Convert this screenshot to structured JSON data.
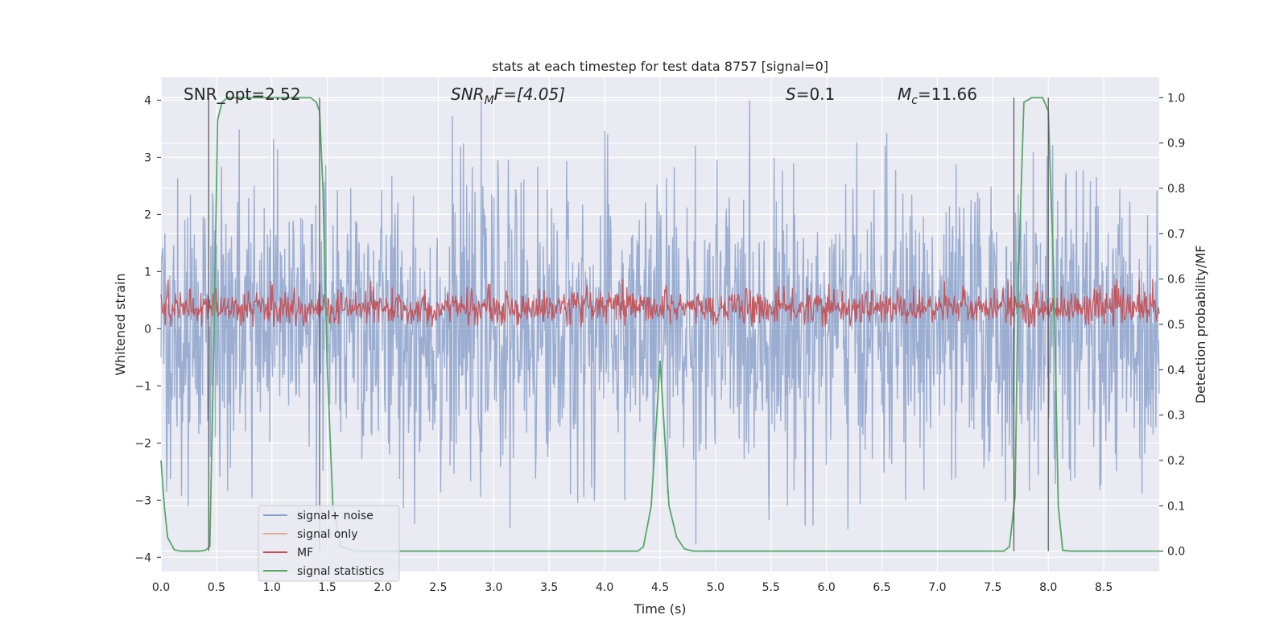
{
  "chart_data": {
    "type": "line",
    "title": "stats at each timestep for test data 8757 [signal=0]",
    "xlabel": "Time (s)",
    "ylabel": "Whitened strain",
    "y2label": "Detection probability/MF",
    "xlim": [
      0,
      9
    ],
    "ylim": [
      -4.25,
      4.4
    ],
    "y2lim": [
      -0.045,
      1.045
    ],
    "xticks": [
      "0.0",
      "0.5",
      "1.0",
      "1.5",
      "2.0",
      "2.5",
      "3.0",
      "3.5",
      "4.0",
      "4.5",
      "5.0",
      "5.5",
      "6.0",
      "6.5",
      "7.0",
      "7.5",
      "8.0",
      "8.5"
    ],
    "yticks": [
      "−4",
      "−3",
      "−2",
      "−1",
      "0",
      "1",
      "2",
      "3",
      "4"
    ],
    "y2ticks": [
      "0.0",
      "0.1",
      "0.2",
      "0.3",
      "0.4",
      "0.5",
      "0.6",
      "0.7",
      "0.8",
      "0.9",
      "1.0"
    ],
    "annotations": {
      "snr_opt": "SNR_opt=2.52",
      "snr_mf_main": "SNR",
      "snr_mf_sub": "M",
      "snr_mf_rest": "F=[4.05]",
      "s_main": "S",
      "s_rest": "=0.1",
      "mc_main": "M",
      "mc_sub": "c",
      "mc_rest": "=11.66"
    },
    "vertical_markers": [
      0.43,
      1.43,
      7.69,
      8.0
    ],
    "series": [
      {
        "name": "signal+ noise",
        "color": "#4c72b0",
        "axis": "left",
        "description": "dense gaussian noise, amplitude about ±2.5 with spikes to about ±4"
      },
      {
        "name": "signal only",
        "color": "#dd8452",
        "axis": "left",
        "values": []
      },
      {
        "name": "MF",
        "color": "#c44e52",
        "axis": "right",
        "description": "noisy band between about 0.50 and 0.60"
      },
      {
        "name": "signal statistics",
        "color": "#55a868",
        "axis": "right",
        "x": [
          0.0,
          0.03,
          0.06,
          0.12,
          0.18,
          0.25,
          0.35,
          0.4,
          0.44,
          0.48,
          0.51,
          0.55,
          0.6,
          0.8,
          1.0,
          1.2,
          1.35,
          1.4,
          1.43,
          1.46,
          1.5,
          1.55,
          1.62,
          1.75,
          2.0,
          3.0,
          4.0,
          4.3,
          4.35,
          4.42,
          4.5,
          4.58,
          4.65,
          4.72,
          4.8,
          5.0,
          6.0,
          7.0,
          7.6,
          7.65,
          7.7,
          7.73,
          7.78,
          7.85,
          7.95,
          8.0,
          8.05,
          8.09,
          8.13,
          8.2,
          8.5,
          9.0
        ],
        "values": [
          0.2,
          0.1,
          0.03,
          0.003,
          0.0,
          0.0,
          0.0,
          0.002,
          0.01,
          0.5,
          0.95,
          0.99,
          1.0,
          1.0,
          1.0,
          1.0,
          1.0,
          0.99,
          0.97,
          0.8,
          0.4,
          0.1,
          0.01,
          0.0,
          0.0,
          0.0,
          0.0,
          0.0,
          0.01,
          0.1,
          0.42,
          0.1,
          0.03,
          0.005,
          0.0,
          0.0,
          0.0,
          0.0,
          0.0,
          0.01,
          0.12,
          0.6,
          0.99,
          1.0,
          1.0,
          0.97,
          0.6,
          0.1,
          0.002,
          0.0,
          0.0,
          0.0
        ]
      }
    ],
    "legend_placement": "lower-left"
  }
}
